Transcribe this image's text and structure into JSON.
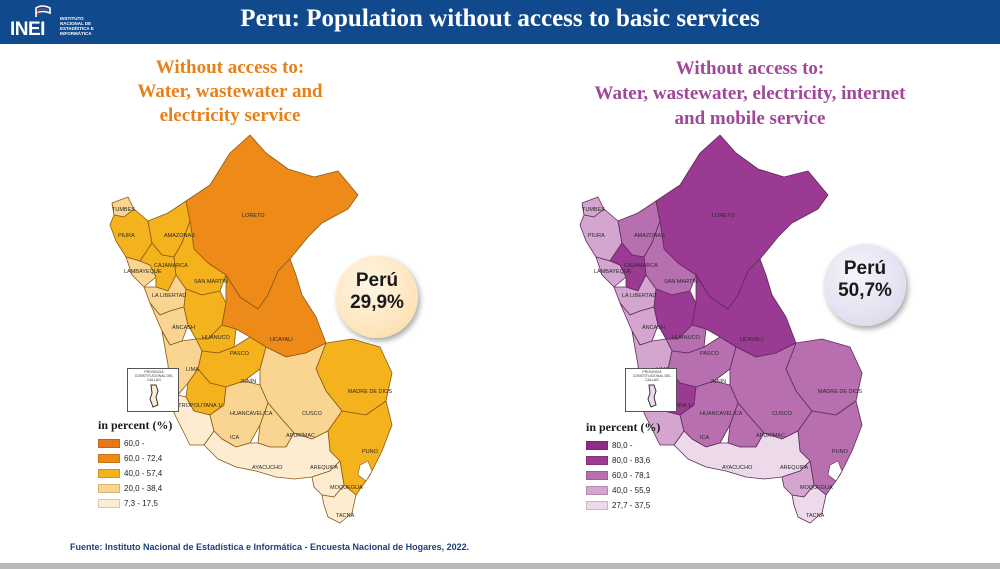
{
  "header": {
    "title": "Peru: Population without access to basic services",
    "logo_mark": "INEI",
    "logo_text": "INSTITUTO NACIONAL DE ESTADÍSTICA E INFORMÁTICA"
  },
  "left_panel": {
    "title_lines": [
      "Without access to:",
      "Water, wastewater and",
      "electricity service"
    ],
    "badge_name": "Perú",
    "badge_value": "29,9%",
    "legend_title": "in percent (%)",
    "legend": [
      {
        "label": "60,0 -",
        "color": "#e8761a"
      },
      {
        "label": "60,0 - 72,4",
        "color": "#ee8a18"
      },
      {
        "label": "40,0 - 57,4",
        "color": "#f4b21c"
      },
      {
        "label": "20,0 - 38,4",
        "color": "#f9d591"
      },
      {
        "label": "7,3 - 17,5",
        "color": "#fdecd0"
      }
    ],
    "border_color": "#8a5a14"
  },
  "right_panel": {
    "title_lines": [
      "Without access to:",
      "Water, wastewater, electricity, internet",
      "and mobile service"
    ],
    "badge_name": "Perú",
    "badge_value": "50,7%",
    "legend_title": "in percent (%)",
    "legend": [
      {
        "label": "80,0 -",
        "color": "#8d2d87"
      },
      {
        "label": "80,0 - 83,6",
        "color": "#9a3a92"
      },
      {
        "label": "60,0 - 78,1",
        "color": "#b76fb0"
      },
      {
        "label": "40,0 - 55,9",
        "color": "#d3a5cf"
      },
      {
        "label": "27,7 - 37,5",
        "color": "#ecd9ea"
      }
    ],
    "border_color": "#5e2a5a"
  },
  "callao_label": "PROVINCIA CONSTITUCIONAL DEL CALLAO",
  "source": "Fuente: Instituto Nacional de Estadística e Informática - Encuesta Nacional de Hogares, 2022.",
  "departments": [
    {
      "name": "TUMBES",
      "left_class": 3,
      "right_class": 3
    },
    {
      "name": "PIURA",
      "left_class": 2,
      "right_class": 3
    },
    {
      "name": "LAMBAYEQUE",
      "left_class": 3,
      "right_class": 3
    },
    {
      "name": "AMAZONAS",
      "left_class": 2,
      "right_class": 2
    },
    {
      "name": "CAJAMARCA",
      "left_class": 2,
      "right_class": 1
    },
    {
      "name": "LORETO",
      "left_class": 1,
      "right_class": 1
    },
    {
      "name": "SAN MARTÍN",
      "left_class": 2,
      "right_class": 2
    },
    {
      "name": "LA LIBERTAD",
      "left_class": 3,
      "right_class": 3
    },
    {
      "name": "ÁNCASH",
      "left_class": 3,
      "right_class": 3
    },
    {
      "name": "HUÁNUCO",
      "left_class": 2,
      "right_class": 1
    },
    {
      "name": "UCAYALI",
      "left_class": 1,
      "right_class": 1
    },
    {
      "name": "PASCO",
      "left_class": 2,
      "right_class": 2
    },
    {
      "name": "LIMA",
      "left_class": 3,
      "right_class": 3
    },
    {
      "name": "LIMA METROPOLITANA 1/",
      "left_class": 4,
      "right_class": 3
    },
    {
      "name": "JUNÍN",
      "left_class": 2,
      "right_class": 2
    },
    {
      "name": "MADRE DE DIOS",
      "left_class": 2,
      "right_class": 2
    },
    {
      "name": "HUANCAVELICA",
      "left_class": 2,
      "right_class": 1
    },
    {
      "name": "CUSCO",
      "left_class": 3,
      "right_class": 2
    },
    {
      "name": "ICA",
      "left_class": 4,
      "right_class": 3
    },
    {
      "name": "AYACUCHO",
      "left_class": 3,
      "right_class": 2
    },
    {
      "name": "APURÍMAC",
      "left_class": 3,
      "right_class": 2
    },
    {
      "name": "PUNO",
      "left_class": 2,
      "right_class": 2
    },
    {
      "name": "AREQUIPA",
      "left_class": 4,
      "right_class": 4
    },
    {
      "name": "MOQUEGUA",
      "left_class": 4,
      "right_class": 3
    },
    {
      "name": "TACNA",
      "left_class": 4,
      "right_class": 4
    }
  ]
}
